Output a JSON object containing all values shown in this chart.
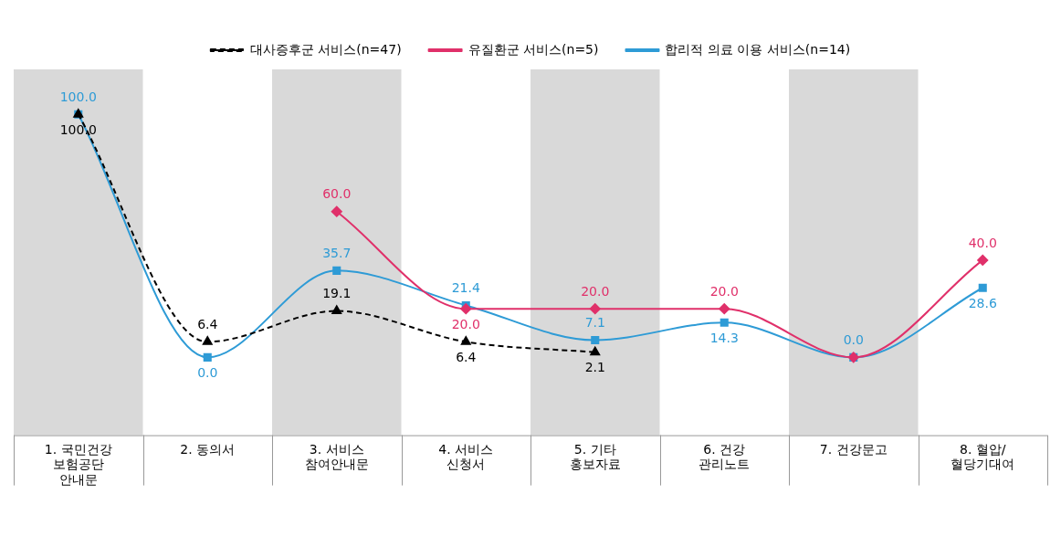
{
  "chart_data": {
    "type": "line",
    "categories": [
      "1. 국민건강\n보험공단\n안내문",
      "2. 동의서",
      "3. 서비스\n참여안내문",
      "4. 서비스\n신청서",
      "5. 기타\n홍보자료",
      "6. 건강\n관리노트",
      "7. 건강문고",
      "8. 혈압/\n혈당기대여"
    ],
    "series": [
      {
        "name": "대사증후군 서비스(n=47)",
        "color": "#000000",
        "marker": "triangle",
        "line_style": "dashed",
        "values": [
          100.0,
          6.4,
          19.1,
          6.4,
          2.1,
          null,
          null,
          null
        ],
        "value_labels": [
          "100.0",
          "6.4",
          "19.1",
          "6.4",
          "2.1",
          null,
          null,
          null
        ]
      },
      {
        "name": "유질환군 서비스(n=5)",
        "color": "#e0306a",
        "marker": "diamond",
        "line_style": "solid",
        "values": [
          null,
          null,
          60.0,
          20.0,
          20.0,
          20.0,
          0.0,
          40.0
        ],
        "value_labels": [
          null,
          null,
          "60.0",
          "20.0",
          "20.0",
          "20.0",
          null,
          "40.0"
        ]
      },
      {
        "name": "합리적 의료 이용 서비스(n=14)",
        "color": "#2e9bd6",
        "marker": "square",
        "line_style": "solid",
        "values": [
          100.0,
          0.0,
          35.7,
          21.4,
          7.1,
          14.3,
          0.0,
          28.6
        ],
        "value_labels": [
          "100.0",
          "0.0",
          "35.7",
          "21.4",
          "7.1",
          "14.3",
          "0.0",
          "28.6"
        ]
      }
    ],
    "tick_labels": "x",
    "grid": false,
    "legend": "top",
    "bands": [
      {
        "axis": "x",
        "from": "1. 국민건강\n보험공단\n안내문",
        "to": "1. 국민건강\n보험공단\n안내문",
        "color": "#d9d9d9"
      },
      {
        "axis": "x",
        "from": "3. 서비스\n참여안내문",
        "to": "3. 서비스\n참여안내문",
        "color": "#d9d9d9"
      },
      {
        "axis": "x",
        "from": "5. 기타\n홍보자료",
        "to": "5. 기타\n홍보자료",
        "color": "#d9d9d9"
      },
      {
        "axis": "x",
        "from": "7. 건강문고",
        "to": "7. 건강문고",
        "color": "#d9d9d9"
      }
    ]
  }
}
